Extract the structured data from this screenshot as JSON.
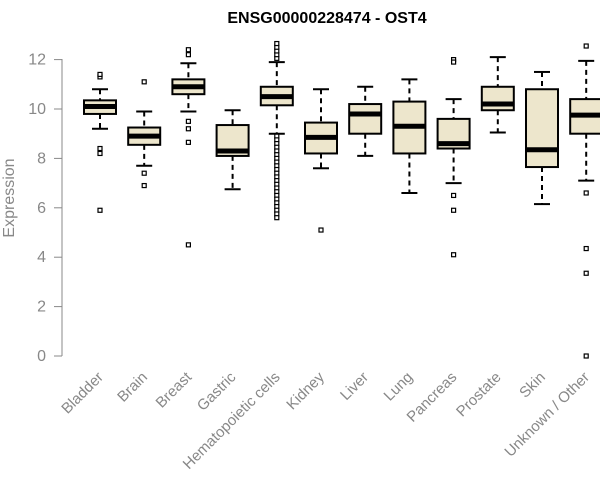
{
  "chart_data": {
    "type": "box",
    "title": "ENSG00000228474 - OST4",
    "xlabel": "",
    "ylabel": "Expression",
    "ylim": [
      0,
      12.6
    ],
    "yticks": [
      0,
      2,
      4,
      6,
      8,
      10,
      12
    ],
    "grid": false,
    "categories": [
      "Bladder",
      "Brain",
      "Breast",
      "Gastric",
      "Hematopoietic cells",
      "Kidney",
      "Liver",
      "Lung",
      "Pancreas",
      "Prostate",
      "Skin",
      "Unknown / Other"
    ],
    "boxes": [
      {
        "whisker_low": 9.2,
        "q1": 9.8,
        "median": 10.1,
        "q3": 10.35,
        "whisker_high": 10.8,
        "outliers": [
          11.3,
          11.4,
          8.4,
          8.2,
          5.9
        ]
      },
      {
        "whisker_low": 7.7,
        "q1": 8.55,
        "median": 8.9,
        "q3": 9.25,
        "whisker_high": 9.9,
        "outliers": [
          11.1,
          7.4,
          6.9
        ]
      },
      {
        "whisker_low": 9.9,
        "q1": 10.6,
        "median": 10.9,
        "q3": 11.2,
        "whisker_high": 11.85,
        "outliers": [
          12.2,
          12.4,
          9.5,
          9.2,
          8.65,
          4.5
        ]
      },
      {
        "whisker_low": 6.75,
        "q1": 8.1,
        "median": 8.3,
        "q3": 9.35,
        "whisker_high": 9.95,
        "outliers": []
      },
      {
        "whisker_low": 9.0,
        "q1": 10.15,
        "median": 10.5,
        "q3": 10.9,
        "whisker_high": 11.9,
        "outliers": [
          12.05,
          12.2,
          12.35,
          12.5,
          12.65,
          8.9,
          8.75,
          8.6,
          8.45,
          8.3,
          8.15,
          8.0,
          7.85,
          7.7,
          7.55,
          7.4,
          7.25,
          7.1,
          6.95,
          6.8,
          6.65,
          6.5,
          6.35,
          6.2,
          6.05,
          5.9,
          5.75,
          5.6
        ]
      },
      {
        "whisker_low": 7.6,
        "q1": 8.2,
        "median": 8.85,
        "q3": 9.45,
        "whisker_high": 10.8,
        "outliers": [
          5.1
        ]
      },
      {
        "whisker_low": 8.1,
        "q1": 9.0,
        "median": 9.8,
        "q3": 10.2,
        "whisker_high": 10.9,
        "outliers": []
      },
      {
        "whisker_low": 6.6,
        "q1": 8.2,
        "median": 9.3,
        "q3": 10.3,
        "whisker_high": 11.2,
        "outliers": []
      },
      {
        "whisker_low": 7.0,
        "q1": 8.4,
        "median": 8.6,
        "q3": 9.6,
        "whisker_high": 10.4,
        "outliers": [
          12.0,
          11.9,
          6.5,
          5.9,
          4.1
        ]
      },
      {
        "whisker_low": 9.05,
        "q1": 9.95,
        "median": 10.2,
        "q3": 10.9,
        "whisker_high": 12.1,
        "outliers": []
      },
      {
        "whisker_low": 6.15,
        "q1": 7.65,
        "median": 8.35,
        "q3": 10.8,
        "whisker_high": 11.5,
        "outliers": []
      },
      {
        "whisker_low": 7.1,
        "q1": 9.0,
        "median": 9.75,
        "q3": 10.4,
        "whisker_high": 11.95,
        "outliers": [
          12.55,
          6.6,
          4.35,
          3.35,
          0.0
        ]
      }
    ],
    "colors": {
      "box_fill": "#ede6cc",
      "box_stroke": "#000000",
      "axis": "#888888"
    }
  }
}
